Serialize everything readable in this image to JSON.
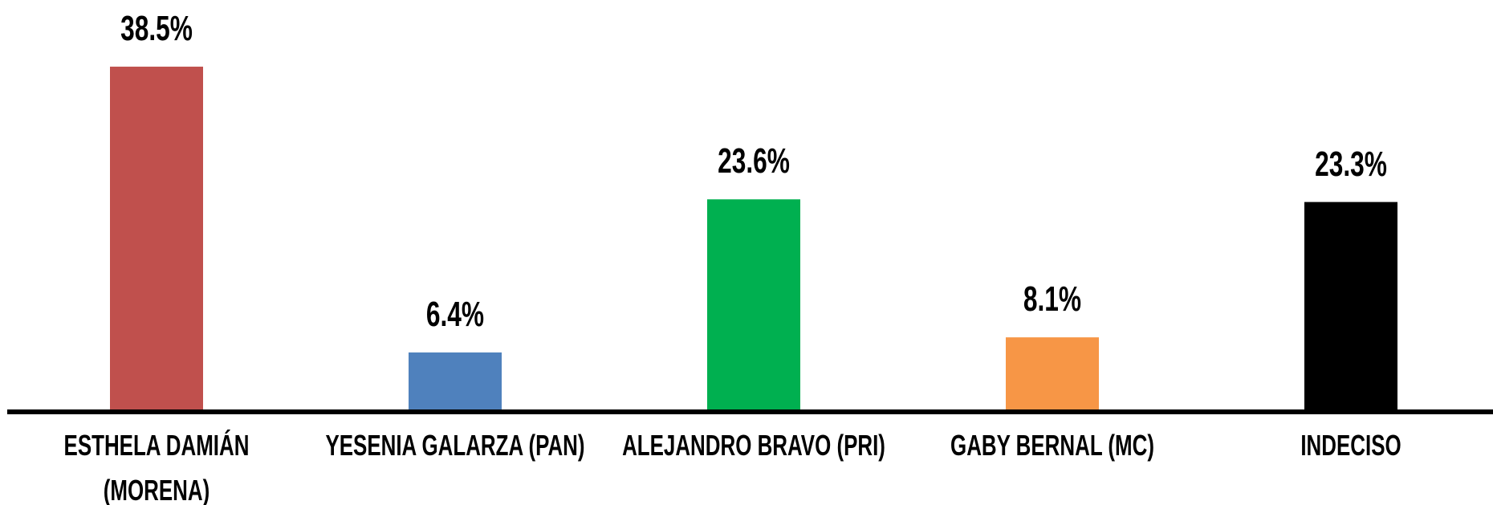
{
  "chart_data": {
    "type": "bar",
    "categories": [
      "ESTHELA DAMIÁN\n(MORENA)",
      "YESENIA GALARZA (PAN)",
      "ALEJANDRO BRAVO (PRI)",
      "GABY BERNAL (MC)",
      "INDECISO"
    ],
    "values": [
      38.5,
      6.4,
      23.6,
      8.1,
      23.3
    ],
    "value_labels": [
      "38.5%",
      "6.4%",
      "23.6%",
      "8.1%",
      "23.3%"
    ],
    "colors": [
      "#c0504d",
      "#4f81bd",
      "#00b050",
      "#f79646",
      "#000000"
    ]
  }
}
